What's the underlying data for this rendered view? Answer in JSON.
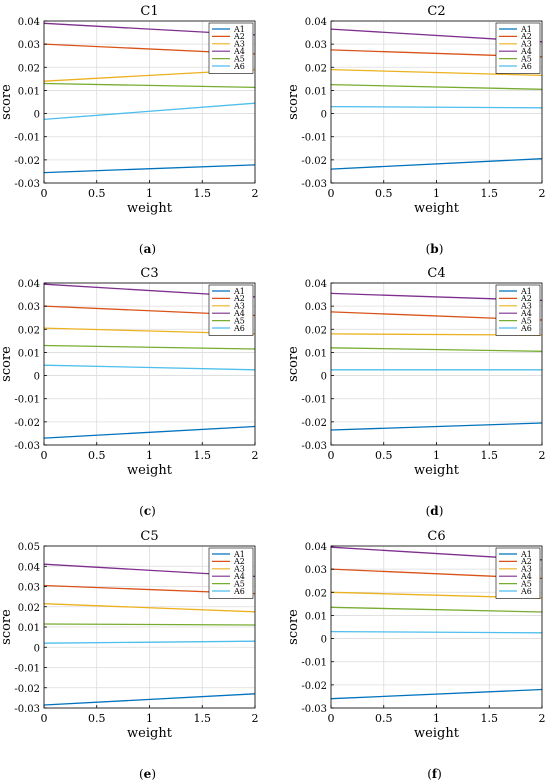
{
  "series_names": [
    "A1",
    "A2",
    "A3",
    "A4",
    "A5",
    "A6"
  ],
  "series_colors": [
    "#0072BD",
    "#D95319",
    "#EDB120",
    "#7E2F8E",
    "#77AC30",
    "#4DBEEE"
  ],
  "chart_data": [
    {
      "type": "line",
      "title": "C1",
      "caption": "(a)",
      "xlabel": "weight",
      "ylabel": "score",
      "xlim": [
        0,
        2
      ],
      "ylim": [
        -0.03,
        0.04
      ],
      "xticks": [
        "0",
        "0.5",
        "1",
        "1.5",
        "2"
      ],
      "yticks": [
        "-0.03",
        "-0.02",
        "-0.01",
        "0",
        "0.01",
        "0.02",
        "0.03",
        "0.04"
      ],
      "legend": "top-right",
      "grid": true,
      "x": [
        0,
        2
      ],
      "series": [
        {
          "name": "A1",
          "values": [
            -0.0255,
            -0.0222
          ]
        },
        {
          "name": "A2",
          "values": [
            0.03,
            0.0258
          ]
        },
        {
          "name": "A3",
          "values": [
            0.014,
            0.019
          ]
        },
        {
          "name": "A4",
          "values": [
            0.039,
            0.034
          ]
        },
        {
          "name": "A5",
          "values": [
            0.013,
            0.0113
          ]
        },
        {
          "name": "A6",
          "values": [
            -0.0025,
            0.0045
          ]
        }
      ]
    },
    {
      "type": "line",
      "title": "C2",
      "caption": "(b)",
      "xlabel": "weight",
      "ylabel": "score",
      "xlim": [
        0,
        2
      ],
      "ylim": [
        -0.03,
        0.04
      ],
      "xticks": [
        "0",
        "0.5",
        "1",
        "1.5",
        "2"
      ],
      "yticks": [
        "-0.03",
        "-0.02",
        "-0.01",
        "0",
        "0.01",
        "0.02",
        "0.03",
        "0.04"
      ],
      "legend": "top-right",
      "grid": true,
      "x": [
        0,
        2
      ],
      "series": [
        {
          "name": "A1",
          "values": [
            -0.024,
            -0.0195
          ]
        },
        {
          "name": "A2",
          "values": [
            0.0275,
            0.0245
          ]
        },
        {
          "name": "A3",
          "values": [
            0.019,
            0.0165
          ]
        },
        {
          "name": "A4",
          "values": [
            0.0365,
            0.031
          ]
        },
        {
          "name": "A5",
          "values": [
            0.0125,
            0.0105
          ]
        },
        {
          "name": "A6",
          "values": [
            0.003,
            0.0025
          ]
        }
      ]
    },
    {
      "type": "line",
      "title": "C3",
      "caption": "(c)",
      "xlabel": "weight",
      "ylabel": "score",
      "xlim": [
        0,
        2
      ],
      "ylim": [
        -0.03,
        0.04
      ],
      "xticks": [
        "0",
        "0.5",
        "1",
        "1.5",
        "2"
      ],
      "yticks": [
        "-0.03",
        "-0.02",
        "-0.01",
        "0",
        "0.01",
        "0.02",
        "0.03",
        "0.04"
      ],
      "legend": "top-right",
      "grid": true,
      "x": [
        0,
        2
      ],
      "series": [
        {
          "name": "A1",
          "values": [
            -0.027,
            -0.022
          ]
        },
        {
          "name": "A2",
          "values": [
            0.03,
            0.026
          ]
        },
        {
          "name": "A3",
          "values": [
            0.0205,
            0.018
          ]
        },
        {
          "name": "A4",
          "values": [
            0.0395,
            0.034
          ]
        },
        {
          "name": "A5",
          "values": [
            0.013,
            0.0115
          ]
        },
        {
          "name": "A6",
          "values": [
            0.0045,
            0.0025
          ]
        }
      ]
    },
    {
      "type": "line",
      "title": "C4",
      "caption": "(d)",
      "xlabel": "weight",
      "ylabel": "score",
      "xlim": [
        0,
        2
      ],
      "ylim": [
        -0.03,
        0.04
      ],
      "xticks": [
        "0",
        "0.5",
        "1",
        "1.5",
        "2"
      ],
      "yticks": [
        "-0.03",
        "-0.02",
        "-0.01",
        "0",
        "0.01",
        "0.02",
        "0.03",
        "0.04"
      ],
      "legend": "top-right",
      "grid": true,
      "x": [
        0,
        2
      ],
      "series": [
        {
          "name": "A1",
          "values": [
            -0.0235,
            -0.0205
          ]
        },
        {
          "name": "A2",
          "values": [
            0.0275,
            0.024
          ]
        },
        {
          "name": "A3",
          "values": [
            0.018,
            0.0175
          ]
        },
        {
          "name": "A4",
          "values": [
            0.0355,
            0.0325
          ]
        },
        {
          "name": "A5",
          "values": [
            0.012,
            0.0105
          ]
        },
        {
          "name": "A6",
          "values": [
            0.0025,
            0.0025
          ]
        }
      ]
    },
    {
      "type": "line",
      "title": "C5",
      "caption": "(e)",
      "xlabel": "weight",
      "ylabel": "score",
      "xlim": [
        0,
        2
      ],
      "ylim": [
        -0.03,
        0.05
      ],
      "xticks": [
        "0",
        "0.5",
        "1",
        "1.5",
        "2"
      ],
      "yticks": [
        "-0.03",
        "-0.02",
        "-0.01",
        "0",
        "0.01",
        "0.02",
        "0.03",
        "0.04",
        "0.05"
      ],
      "legend": "top-right",
      "grid": true,
      "x": [
        0,
        2
      ],
      "series": [
        {
          "name": "A1",
          "values": [
            -0.0285,
            -0.023
          ]
        },
        {
          "name": "A2",
          "values": [
            0.0305,
            0.0265
          ]
        },
        {
          "name": "A3",
          "values": [
            0.0215,
            0.0175
          ]
        },
        {
          "name": "A4",
          "values": [
            0.041,
            0.035
          ]
        },
        {
          "name": "A5",
          "values": [
            0.0115,
            0.011
          ]
        },
        {
          "name": "A6",
          "values": [
            0.002,
            0.003
          ]
        }
      ]
    },
    {
      "type": "line",
      "title": "C6",
      "caption": "(f)",
      "xlabel": "weight",
      "ylabel": "score",
      "xlim": [
        0,
        2
      ],
      "ylim": [
        -0.03,
        0.04
      ],
      "xticks": [
        "0",
        "0.5",
        "1",
        "1.5",
        "2"
      ],
      "yticks": [
        "-0.03",
        "-0.02",
        "-0.01",
        "0",
        "0.01",
        "0.02",
        "0.03",
        "0.04"
      ],
      "legend": "top-right",
      "grid": true,
      "x": [
        0,
        2
      ],
      "series": [
        {
          "name": "A1",
          "values": [
            -0.026,
            -0.022
          ]
        },
        {
          "name": "A2",
          "values": [
            0.03,
            0.026
          ]
        },
        {
          "name": "A3",
          "values": [
            0.02,
            0.0175
          ]
        },
        {
          "name": "A4",
          "values": [
            0.0395,
            0.034
          ]
        },
        {
          "name": "A5",
          "values": [
            0.0135,
            0.0115
          ]
        },
        {
          "name": "A6",
          "values": [
            0.003,
            0.0025
          ]
        }
      ]
    }
  ]
}
